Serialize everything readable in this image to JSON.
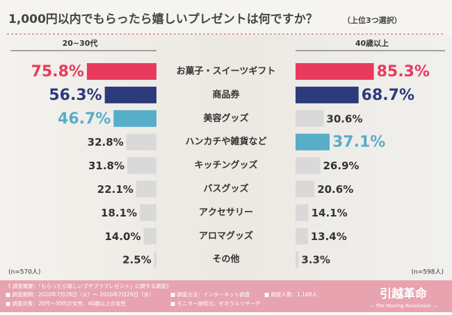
{
  "chart_data": {
    "type": "butterfly-bar",
    "title": "1,000円以内でもらったら嬉しいプレゼントは何ですか？",
    "subtitle": "（上位3つ選択）",
    "categories": [
      "お菓子・スイーツギフト",
      "商品券",
      "美容グッズ",
      "ハンカチや雑貨など",
      "キッチングッズ",
      "バスグッズ",
      "アクセサリー",
      "アロマグッズ",
      "その他"
    ],
    "series": [
      {
        "name": "20~30代",
        "note": "(n=570人)",
        "values": [
          75.8,
          56.3,
          46.7,
          32.8,
          31.8,
          22.1,
          18.1,
          14.0,
          2.5
        ],
        "value_labels": [
          "75.8%",
          "56.3%",
          "46.7%",
          "32.8%",
          "31.8%",
          "22.1%",
          "18.1%",
          "14.0%",
          "2.5%"
        ],
        "colors": [
          "#e83a5c",
          "#2b3b7c",
          "#56aec9",
          "#d9d9d9",
          "#d9d9d9",
          "#d9d9d9",
          "#d9d9d9",
          "#d9d9d9",
          "#d9d9d9"
        ]
      },
      {
        "name": "40歳以上",
        "note": "(n=598人)",
        "values": [
          85.3,
          68.7,
          30.6,
          37.1,
          26.9,
          20.6,
          14.1,
          13.4,
          3.3
        ],
        "value_labels": [
          "85.3%",
          "68.7%",
          "30.6%",
          "37.1%",
          "26.9%",
          "20.6%",
          "14.1%",
          "13.4%",
          "3.3%"
        ],
        "colors": [
          "#e83a5c",
          "#2b3b7c",
          "#d9d9d9",
          "#56aec9",
          "#d9d9d9",
          "#d9d9d9",
          "#d9d9d9",
          "#d9d9d9",
          "#d9d9d9"
        ]
      }
    ]
  },
  "survey": {
    "heading": "《 調査概要：「もらったら嬉しいプチプラプレゼント」に関する調査》",
    "items": [
      "■ 調査期間：2020年7月28日（火）～ 2020年7月29日（水）",
      "■ 調査方法：インターネット調査",
      "■ 調査人数：1,168人",
      "■ 調査対象：20代～30代の女性、40歳以上の女性",
      "■ モニター提供元：ゼネラルリサーチ"
    ]
  },
  "logo": {
    "name": "引越革命",
    "tagline": "— The Moving Revolution —"
  }
}
